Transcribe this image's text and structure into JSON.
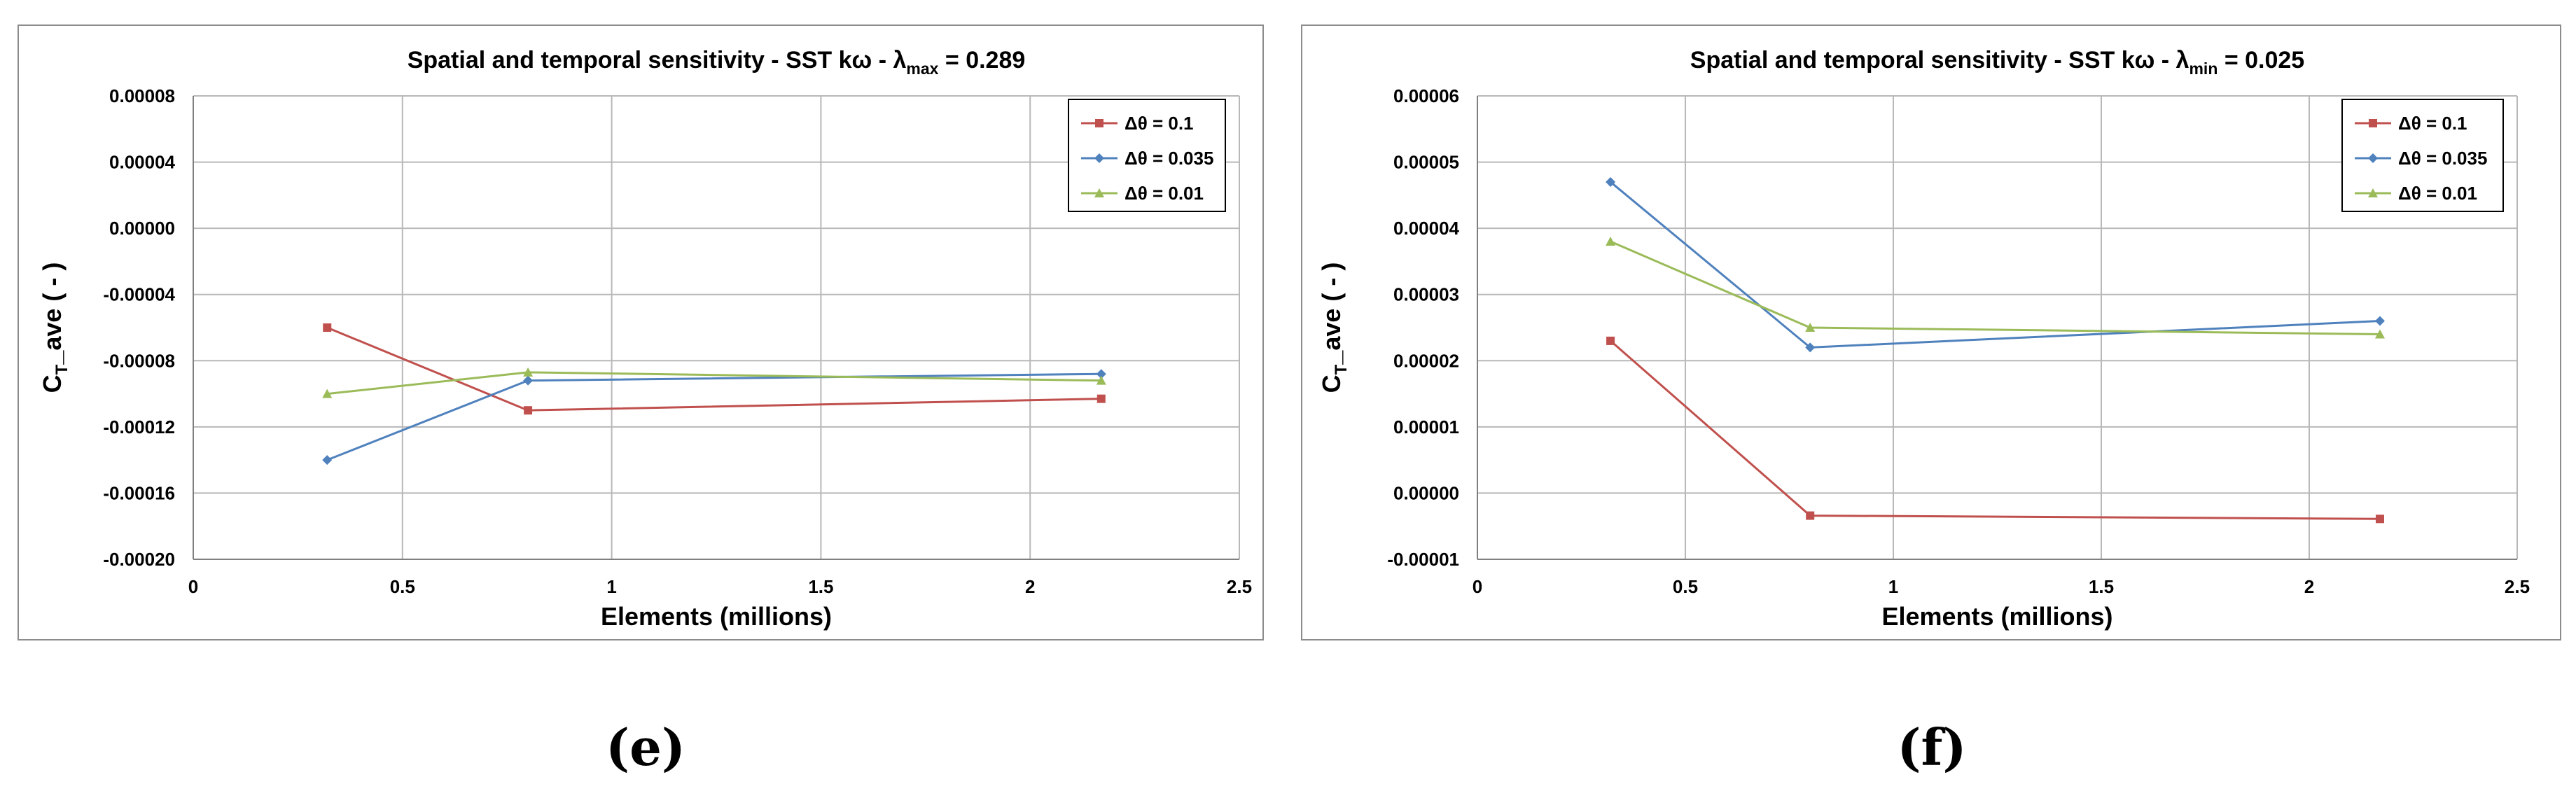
{
  "captions": {
    "e": "(e)",
    "f": "(f)"
  },
  "chart_data": [
    {
      "id": "e",
      "type": "line",
      "title_main": "Spatial and temporal sensitivity - SST kω - λ",
      "title_sub": "max",
      "title_tail": " = 0.289",
      "xlabel": "Elements (millions)",
      "ylabel_main": "C",
      "ylabel_sub": "T",
      "ylabel_tail": "_ave ( - )",
      "xlim": [
        0,
        2.5
      ],
      "xticks": [
        0,
        0.5,
        1,
        1.5,
        2,
        2.5
      ],
      "xtick_labels": [
        "0",
        "0.5",
        "1",
        "1.5",
        "2",
        "2.5"
      ],
      "ylim": [
        -0.0002,
        8e-05
      ],
      "yticks": [
        -0.0002,
        -0.00016,
        -0.00012,
        -8e-05,
        -4e-05,
        0,
        4e-05,
        8e-05
      ],
      "ytick_labels": [
        "-0.00020",
        "-0.00016",
        "-0.00012",
        "-0.00008",
        "-0.00004",
        "0.00000",
        "0.00004",
        "0.00008"
      ],
      "grid": true,
      "legend": "top-right",
      "series": [
        {
          "name": "Δθ = 0.1",
          "color": "#c0504d",
          "marker": "square",
          "x": [
            0.32,
            0.8,
            2.17
          ],
          "y": [
            -6e-05,
            -0.00011,
            -0.000103
          ]
        },
        {
          "name": "Δθ = 0.035",
          "color": "#4f81bd",
          "marker": "diamond",
          "x": [
            0.32,
            0.8,
            2.17
          ],
          "y": [
            -0.00014,
            -9.2e-05,
            -8.8e-05
          ]
        },
        {
          "name": "Δθ = 0.01",
          "color": "#9bbb59",
          "marker": "triangle",
          "x": [
            0.32,
            0.8,
            2.17
          ],
          "y": [
            -0.0001,
            -8.7e-05,
            -9.2e-05
          ]
        }
      ]
    },
    {
      "id": "f",
      "type": "line",
      "title_main": "Spatial and temporal sensitivity - SST kω - λ",
      "title_sub": "min",
      "title_tail": " = 0.025",
      "xlabel": "Elements (millions)",
      "ylabel_main": "C",
      "ylabel_sub": "T",
      "ylabel_tail": "_ave ( - )",
      "xlim": [
        0,
        2.5
      ],
      "xticks": [
        0,
        0.5,
        1,
        1.5,
        2,
        2.5
      ],
      "xtick_labels": [
        "0",
        "0.5",
        "1",
        "1.5",
        "2",
        "2.5"
      ],
      "ylim": [
        -1e-05,
        6e-05
      ],
      "yticks": [
        -1e-05,
        0,
        1e-05,
        2e-05,
        3e-05,
        4e-05,
        5e-05,
        6e-05
      ],
      "ytick_labels": [
        "-0.00001",
        "0.00000",
        "0.00001",
        "0.00002",
        "0.00003",
        "0.00004",
        "0.00005",
        "0.00006"
      ],
      "grid": true,
      "legend": "top-right",
      "series": [
        {
          "name": "Δθ = 0.1",
          "color": "#c0504d",
          "marker": "square",
          "x": [
            0.32,
            0.8,
            2.17
          ],
          "y": [
            2.3e-05,
            -3.4e-06,
            -3.9e-06
          ]
        },
        {
          "name": "Δθ = 0.035",
          "color": "#4f81bd",
          "marker": "diamond",
          "x": [
            0.32,
            0.8,
            2.17
          ],
          "y": [
            4.7e-05,
            2.2e-05,
            2.6e-05
          ]
        },
        {
          "name": "Δθ = 0.01",
          "color": "#9bbb59",
          "marker": "triangle",
          "x": [
            0.32,
            0.8,
            2.17
          ],
          "y": [
            3.8e-05,
            2.5e-05,
            2.4e-05
          ]
        }
      ]
    }
  ]
}
